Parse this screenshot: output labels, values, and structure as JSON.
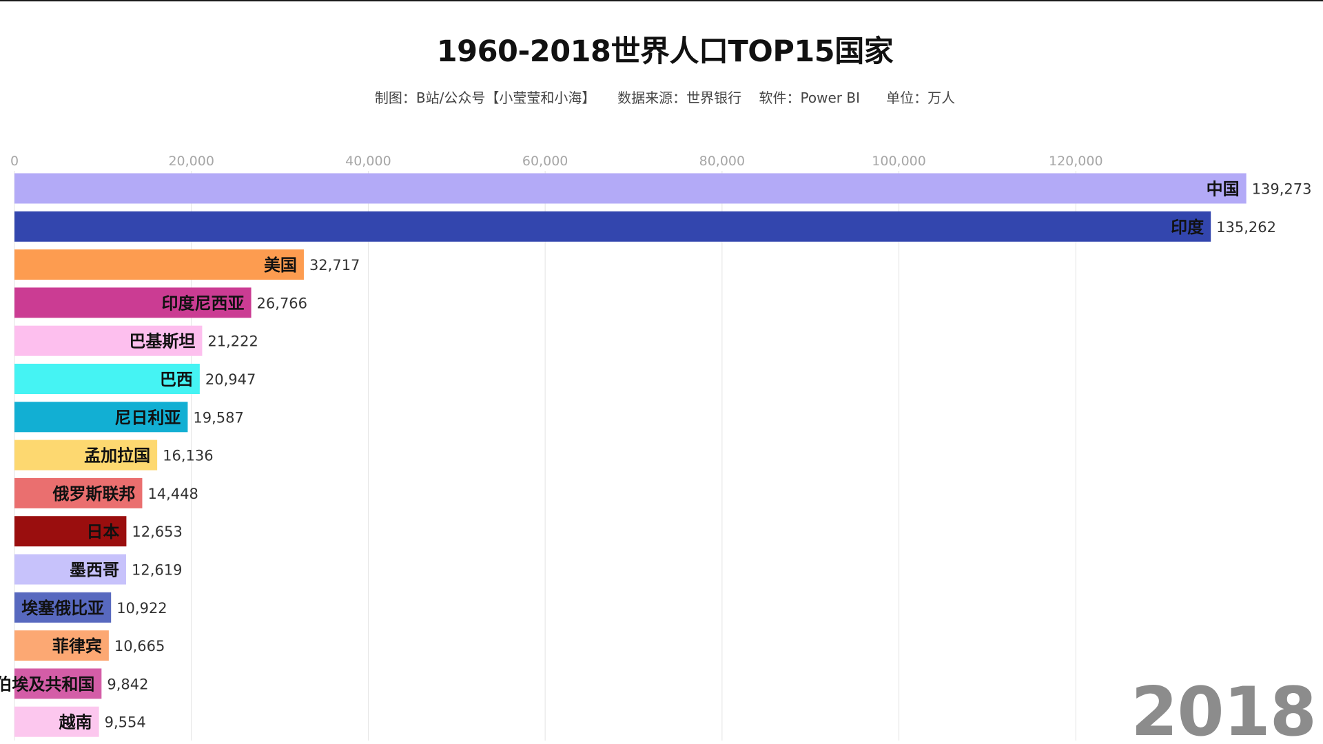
{
  "header": {
    "title": "1960-2018世界人口TOP15国家",
    "subtitle": "制图：B站/公众号【小莹莹和小海】     数据来源：世界银行    软件：Power BI      单位：万人"
  },
  "year": "2018",
  "chart_data": {
    "type": "bar",
    "orientation": "horizontal",
    "title": "1960-2018世界人口TOP15国家",
    "xlabel": "",
    "ylabel": "",
    "xlim": [
      0,
      140000
    ],
    "x_ticks": [
      0,
      20000,
      40000,
      60000,
      80000,
      100000,
      120000
    ],
    "x_tick_labels": [
      "0",
      "20,000",
      "40,000",
      "60,000",
      "80,000",
      "100,000",
      "120,000"
    ],
    "axis_position": "top",
    "grid": true,
    "categories": [
      "中国",
      "印度",
      "美国",
      "印度尼西亚",
      "巴基斯坦",
      "巴西",
      "尼日利亚",
      "孟加拉国",
      "俄罗斯联邦",
      "日本",
      "墨西哥",
      "埃塞俄比亚",
      "菲律宾",
      "阿拉伯埃及共和国",
      "越南"
    ],
    "values": [
      139273,
      135262,
      32717,
      26766,
      21222,
      20947,
      19587,
      16136,
      14448,
      12653,
      12619,
      10922,
      10665,
      9842,
      9554
    ],
    "value_labels": [
      "139,273",
      "135,262",
      "32,717",
      "26,766",
      "21,222",
      "20,947",
      "19,587",
      "16,136",
      "14,448",
      "12,653",
      "12,619",
      "10,922",
      "10,665",
      "9,842",
      "9,554"
    ],
    "colors": [
      "#b3aaf7",
      "#3346ae",
      "#fd9c50",
      "#cb3c93",
      "#fdbfee",
      "#45f3f3",
      "#12afd3",
      "#fdd870",
      "#ea6f6f",
      "#9a0e0e",
      "#c7c2fb",
      "#5869bf",
      "#fca873",
      "#d45da7",
      "#fcc7ee"
    ]
  }
}
